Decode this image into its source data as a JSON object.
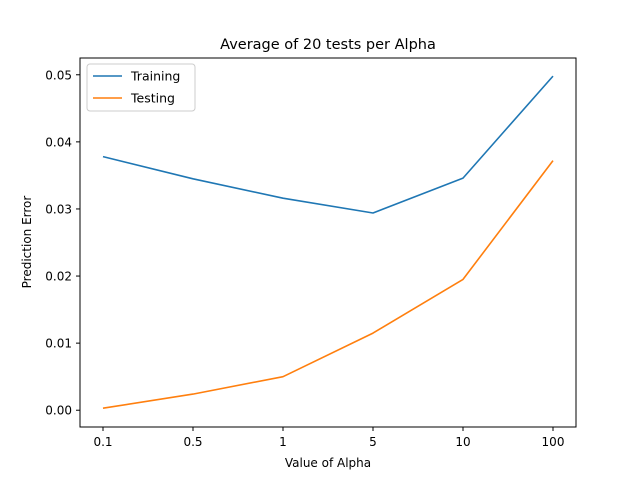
{
  "chart_data": {
    "type": "line",
    "title": "Average of 20 tests per Alpha",
    "xlabel": "Value of Alpha",
    "ylabel": "Prediction Error",
    "categories": [
      "0.1",
      "0.5",
      "1",
      "5",
      "10",
      "100"
    ],
    "ylim": [
      -0.0025,
      0.0525
    ],
    "yticks": [
      0.0,
      0.01,
      0.02,
      0.03,
      0.04,
      0.05
    ],
    "ytick_labels": [
      "0.00",
      "0.01",
      "0.02",
      "0.03",
      "0.04",
      "0.05"
    ],
    "grid": false,
    "legend_position": "top-left",
    "series": [
      {
        "name": "Training",
        "color": "#1f77b4",
        "values": [
          0.0378,
          0.0345,
          0.0316,
          0.0294,
          0.0346,
          0.0498
        ]
      },
      {
        "name": "Testing",
        "color": "#ff7f0e",
        "values": [
          0.0003,
          0.0024,
          0.005,
          0.0115,
          0.0195,
          0.0372
        ]
      }
    ]
  }
}
